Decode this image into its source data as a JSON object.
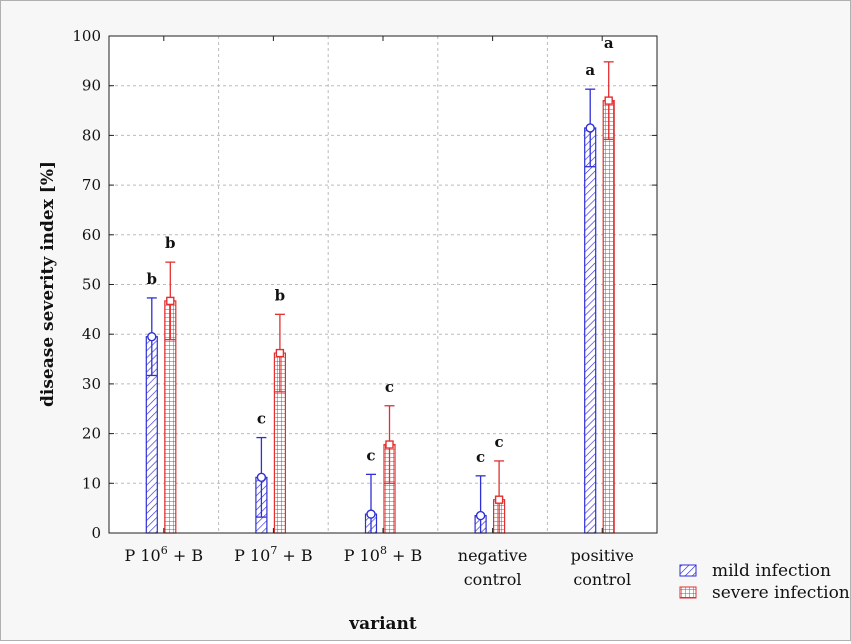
{
  "chart_data": {
    "type": "bar",
    "title": "",
    "xlabel": "variant",
    "ylabel": "disease severity index [%]",
    "ylim": [
      0,
      100
    ],
    "yticks": [
      0,
      10,
      20,
      30,
      40,
      50,
      60,
      70,
      80,
      90,
      100
    ],
    "grid": true,
    "legend_position": "bottom-right",
    "categories": [
      {
        "lines": [
          "P 10",
          "6",
          " + B"
        ],
        "exponent": true
      },
      {
        "lines": [
          "P 10",
          "7",
          " + B"
        ],
        "exponent": true
      },
      {
        "lines": [
          "P 10",
          "8",
          " + B"
        ],
        "exponent": true
      },
      {
        "lines": [
          "negative",
          "control"
        ],
        "exponent": false
      },
      {
        "lines": [
          "positive",
          "control"
        ],
        "exponent": false
      }
    ],
    "series": [
      {
        "name": "mild infection",
        "color": "#2f2fd6",
        "values": [
          39.5,
          11.2,
          3.8,
          3.5,
          81.5
        ],
        "error": [
          7.8,
          8.0,
          8.0,
          8.0,
          7.8
        ],
        "letters": [
          "b",
          "c",
          "c",
          "c",
          "a"
        ]
      },
      {
        "name": "severe infection",
        "color": "#e23030",
        "values": [
          46.7,
          36.2,
          17.8,
          6.7,
          87.0
        ],
        "error": [
          7.8,
          7.8,
          7.8,
          7.8,
          7.8
        ],
        "letters": [
          "b",
          "b",
          "c",
          "c",
          "a"
        ]
      }
    ]
  }
}
